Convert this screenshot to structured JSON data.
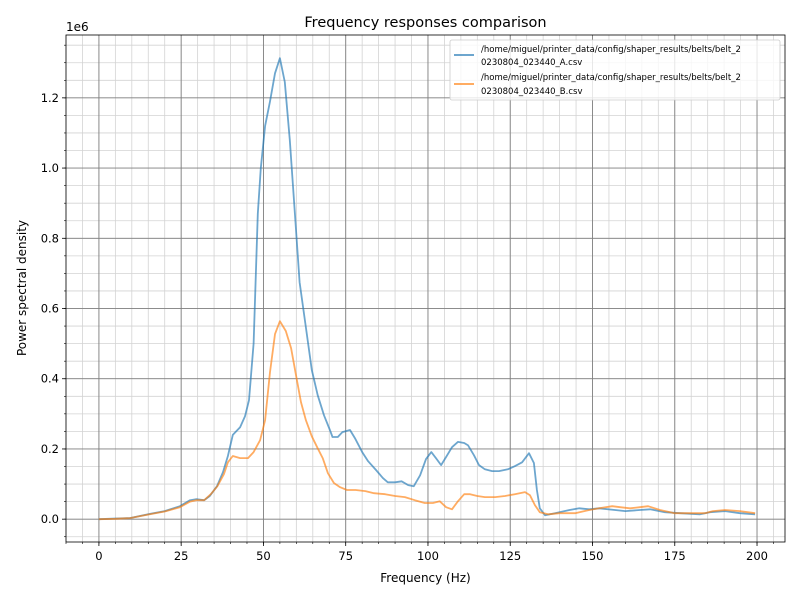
{
  "chart_data": {
    "type": "line",
    "title": "Frequency responses comparison",
    "xlabel": "Frequency (Hz)",
    "ylabel": "Power spectral density",
    "y_offset_label": "1e6",
    "xlim": [
      -10,
      208.5
    ],
    "ylim": [
      -0.065,
      1.379
    ],
    "y_scale_factor": 1000000,
    "xticks": [
      0,
      25,
      50,
      75,
      100,
      125,
      150,
      175,
      200
    ],
    "yticks": [
      0.0,
      0.2,
      0.4,
      0.6,
      0.8,
      1.0,
      1.2
    ],
    "ytick_labels": [
      "0.0",
      "0.2",
      "0.4",
      "0.6",
      "0.8",
      "1.0",
      "1.2"
    ],
    "x_minor_step": 5,
    "y_minor_step": 0.05,
    "grid": {
      "major": true,
      "minor": true,
      "major_color": "#808080",
      "minor_color": "#d3d3d3"
    },
    "legend_placement": "top-right",
    "series": [
      {
        "name": "/home/miguel/printer_data/config/shaper_results/belts/belt_20230804_023440_A.csv",
        "name_lines": [
          "/home/miguel/printer_data/config/shaper_results/belts/belt_2",
          "0230804_023440_A.csv"
        ],
        "color": "#1f77b4",
        "x": [
          0,
          5,
          9.4,
          15.5,
          20,
          24.6,
          27.7,
          29.5,
          32,
          33.7,
          35.9,
          37.7,
          39.2,
          40.7,
          42.9,
          44.4,
          45.6,
          47,
          48.3,
          49.2,
          50.5,
          52,
          53.5,
          55,
          56.5,
          58,
          59.6,
          61,
          63,
          64.7,
          66.5,
          68.4,
          70.2,
          71,
          72.6,
          74,
          76.3,
          77.8,
          80,
          81.8,
          84.2,
          86.3,
          87.8,
          90,
          92,
          94,
          95.7,
          97.6,
          99.4,
          101,
          102.4,
          104,
          105.5,
          107.3,
          109.1,
          111,
          112.2,
          114,
          115.5,
          117.3,
          119.5,
          121.6,
          124.3,
          126.4,
          128.6,
          130.7,
          132.2,
          133.1,
          134,
          135.6,
          138.6,
          143,
          146,
          149,
          152,
          156.8,
          160,
          164.4,
          167.5,
          172,
          176.6,
          182.7,
          185.7,
          190.3,
          194.8,
          199.4
        ],
        "y": [
          0,
          0.002,
          0.003,
          0.015,
          0.023,
          0.037,
          0.054,
          0.057,
          0.054,
          0.066,
          0.094,
          0.134,
          0.18,
          0.24,
          0.262,
          0.293,
          0.339,
          0.5,
          0.87,
          1.0,
          1.12,
          1.19,
          1.27,
          1.313,
          1.245,
          1.08,
          0.866,
          0.675,
          0.54,
          0.425,
          0.353,
          0.296,
          0.254,
          0.234,
          0.234,
          0.248,
          0.254,
          0.231,
          0.191,
          0.165,
          0.14,
          0.117,
          0.105,
          0.105,
          0.108,
          0.097,
          0.094,
          0.125,
          0.171,
          0.191,
          0.174,
          0.154,
          0.177,
          0.205,
          0.22,
          0.217,
          0.21,
          0.182,
          0.154,
          0.142,
          0.137,
          0.137,
          0.142,
          0.151,
          0.162,
          0.188,
          0.16,
          0.083,
          0.031,
          0.011,
          0.017,
          0.026,
          0.031,
          0.028,
          0.031,
          0.026,
          0.023,
          0.026,
          0.028,
          0.02,
          0.017,
          0.014,
          0.02,
          0.023,
          0.017,
          0.014
        ]
      },
      {
        "name": "/home/miguel/printer_data/config/shaper_results/belts/belt_20230804_023440_B.csv",
        "name_lines": [
          "/home/miguel/printer_data/config/shaper_results/belts/belt_2",
          "0230804_023440_B.csv"
        ],
        "color": "#ff7f0e",
        "x": [
          0,
          5,
          9.4,
          15.5,
          20,
          24.6,
          27.7,
          29.5,
          32,
          34,
          36,
          38,
          39.2,
          40.7,
          42.9,
          45.3,
          47,
          49,
          50.5,
          52,
          53.5,
          55,
          56.8,
          58.4,
          59.9,
          61.4,
          62.9,
          64.7,
          66.5,
          68,
          69.6,
          71.4,
          73.3,
          75.4,
          78,
          81,
          83.6,
          87,
          90,
          93,
          96,
          99,
          101.5,
          103.6,
          105.5,
          107.3,
          109.1,
          111,
          112.8,
          115,
          117.3,
          120.4,
          123.4,
          126.4,
          129.5,
          131,
          132.5,
          134,
          136.5,
          140,
          144.7,
          149,
          152,
          156,
          158.4,
          161.4,
          164.4,
          166.9,
          170.5,
          175,
          179.6,
          184.2,
          186.6,
          190.3,
          194.8,
          199.4
        ],
        "y": [
          0,
          0.001,
          0.003,
          0.014,
          0.022,
          0.034,
          0.05,
          0.054,
          0.054,
          0.071,
          0.094,
          0.128,
          0.162,
          0.18,
          0.174,
          0.174,
          0.191,
          0.225,
          0.282,
          0.419,
          0.527,
          0.564,
          0.536,
          0.487,
          0.41,
          0.333,
          0.282,
          0.236,
          0.202,
          0.174,
          0.131,
          0.103,
          0.091,
          0.083,
          0.083,
          0.08,
          0.074,
          0.071,
          0.066,
          0.063,
          0.054,
          0.046,
          0.046,
          0.051,
          0.034,
          0.028,
          0.051,
          0.071,
          0.071,
          0.066,
          0.063,
          0.063,
          0.066,
          0.071,
          0.077,
          0.068,
          0.04,
          0.02,
          0.014,
          0.017,
          0.017,
          0.026,
          0.031,
          0.037,
          0.034,
          0.031,
          0.034,
          0.037,
          0.026,
          0.017,
          0.017,
          0.017,
          0.023,
          0.026,
          0.023,
          0.017
        ]
      }
    ]
  }
}
